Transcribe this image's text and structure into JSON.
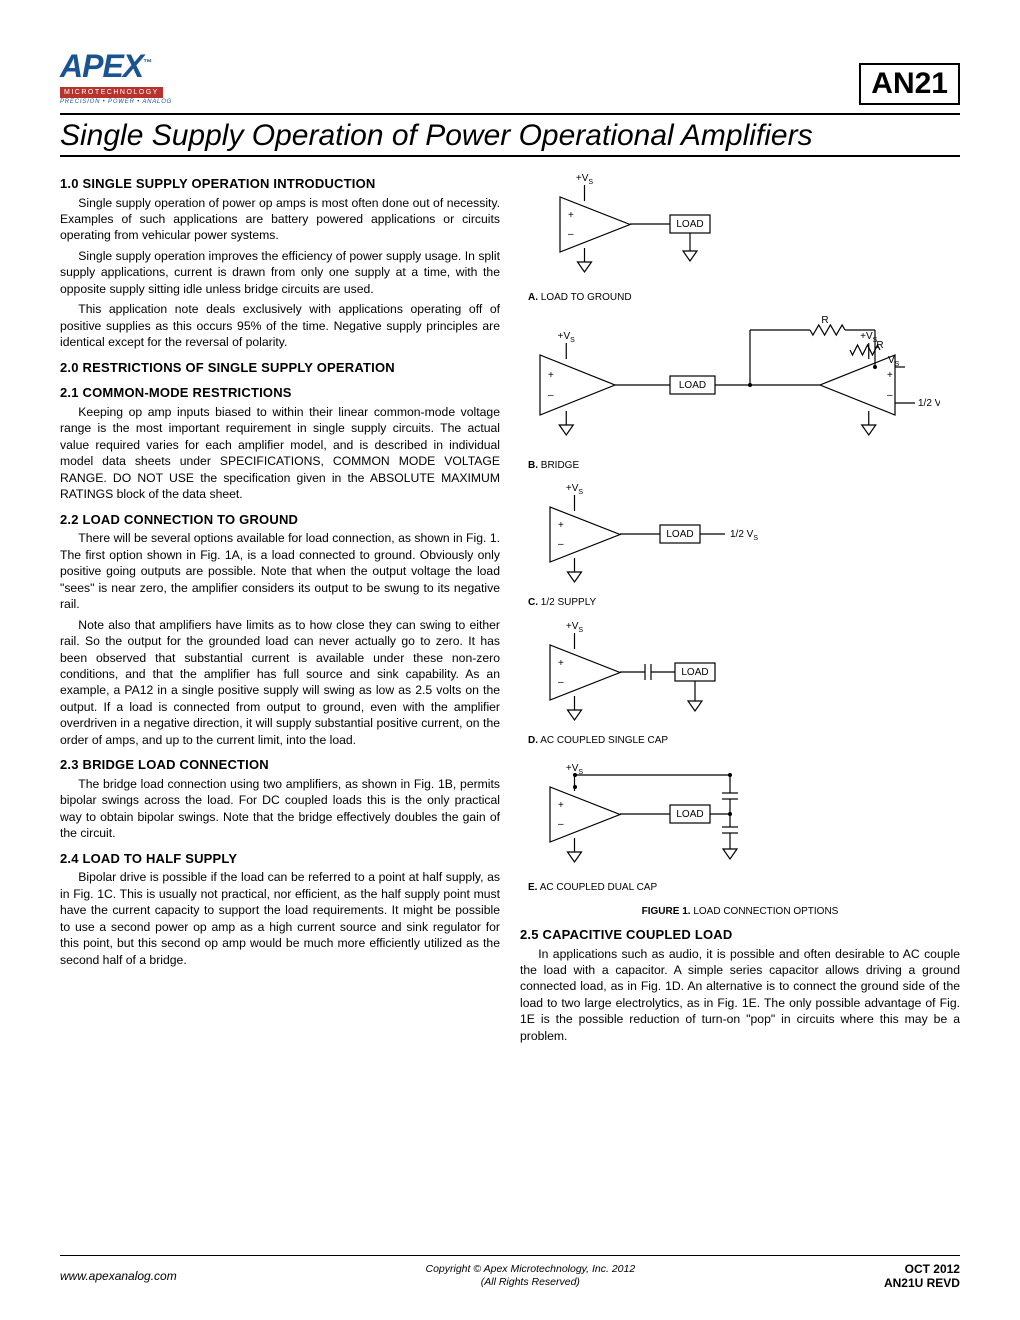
{
  "logo": {
    "name": "APEX",
    "tm": "™",
    "micro": "MICROTECHNOLOGY",
    "sub": "PRECISION • POWER • ANALOG"
  },
  "doc_code": "AN21",
  "title": "Single Supply Operation of Power Operational Amplifiers",
  "sections": {
    "s1_0": {
      "heading": "1.0 SINGLE SUPPLY OPERATION INTRODUCTION",
      "p1": "Single supply operation of power op amps is most often done out of necessity. Examples of such applications are battery powered applications or circuits operating from vehicular power systems.",
      "p2": "Single supply operation improves the efficiency of power supply usage. In split supply applications, current is drawn from only one supply at a time, with the opposite supply sitting idle unless bridge circuits are used.",
      "p3": "This application note deals exclusively with applications operating off of positive supplies as this occurs 95% of the time. Negative supply principles are identical except for the reversal of polarity."
    },
    "s2_0": {
      "heading": "2.0 RESTRICTIONS OF SINGLE SUPPLY OPERATION"
    },
    "s2_1": {
      "heading": "2.1 COMMON-MODE RESTRICTIONS",
      "p1": "Keeping op amp inputs biased to within their linear common-mode voltage range is the most important requirement in single supply circuits. The actual value required varies for each amplifier model, and is described in individual model data sheets under SPECIFICATIONS, COMMON MODE VOLTAGE RANGE. DO NOT USE the specification given in the ABSOLUTE MAXIMUM RATINGS block of the data sheet."
    },
    "s2_2": {
      "heading": "2.2 LOAD CONNECTION TO GROUND",
      "p1": "There will be several options available for load connection, as shown in Fig. 1. The first option shown in Fig. 1A, is a load connected to ground. Obviously only positive going outputs are possible. Note that when the output voltage the load \"sees\" is near zero, the amplifier considers its output to be swung to its negative rail.",
      "p2": "Note also that amplifiers have limits as to how close they can swing to either rail. So the output for the grounded load can never actually go to zero. It has been observed that substantial current is available under these non-zero conditions, and that the amplifier has full source and sink capability. As an example, a PA12 in a single positive supply will swing as low as 2.5 volts on the output. If a load is connected from output to ground, even with the amplifier overdriven in a negative direction, it will supply substantial positive current, on the order of amps, and up to the current limit, into the load."
    },
    "s2_3": {
      "heading": "2.3 BRIDGE LOAD CONNECTION",
      "p1": "The bridge load connection using two amplifiers, as shown in Fig. 1B, permits bipolar swings across the load. For DC coupled loads this is the only practical way to obtain bipolar swings. Note that the bridge effectively doubles the gain of the circuit."
    },
    "s2_4": {
      "heading": "2.4 LOAD TO HALF SUPPLY",
      "p1": "Bipolar drive is possible if the load can be referred to a point at half supply, as in Fig. 1C. This is usually not practical, nor efficient, as the half supply point must have the current capacity to support the load requirements. It might be possible to use a second power op amp as a high current source and sink regulator for this point, but this second op amp would be much more efficiently utilized as the second half of a bridge."
    },
    "s2_5": {
      "heading": "2.5 CAPACITIVE COUPLED LOAD",
      "p1": "In applications such as audio, it is possible and often desirable to AC couple the load with a capacitor. A simple series capacitor allows driving a ground connected load, as in Fig. 1D. An alternative is to connect the ground side of the load to two large electrolytics, as in Fig. 1E. The only possible advantage of Fig. 1E is the possible reduction of turn-on \"pop\" in circuits where this may be a problem."
    }
  },
  "figure1": {
    "caption_bold": "FIGURE 1.",
    "caption_rest": "LOAD CONNECTION OPTIONS",
    "sub": {
      "A": {
        "tag": "A.",
        "label": "LOAD TO GROUND"
      },
      "B": {
        "tag": "B.",
        "label": "BRIDGE"
      },
      "C": {
        "tag": "C.",
        "label": "1/2 SUPPLY"
      },
      "D": {
        "tag": "D.",
        "label": "AC COUPLED SINGLE CAP"
      },
      "E": {
        "tag": "E.",
        "label": "AC COUPLED DUAL CAP"
      }
    },
    "labels": {
      "vs": "+V",
      "vs_sub": "S",
      "load": "LOAD",
      "half_vs": "1/2 V",
      "R": "R",
      "plus": "+",
      "minus": "–"
    },
    "style": {
      "stroke": "#000000",
      "stroke_width": 1.2,
      "text_font_size": 10,
      "sub_font_size": 7,
      "background": "#ffffff"
    }
  },
  "footer": {
    "left": "www.apexanalog.com",
    "center1": "Copyright © Apex Microtechnology, Inc. 2012",
    "center2": "(All Rights Reserved)",
    "right1": "OCT 2012",
    "right2": "AN21U REVD"
  }
}
